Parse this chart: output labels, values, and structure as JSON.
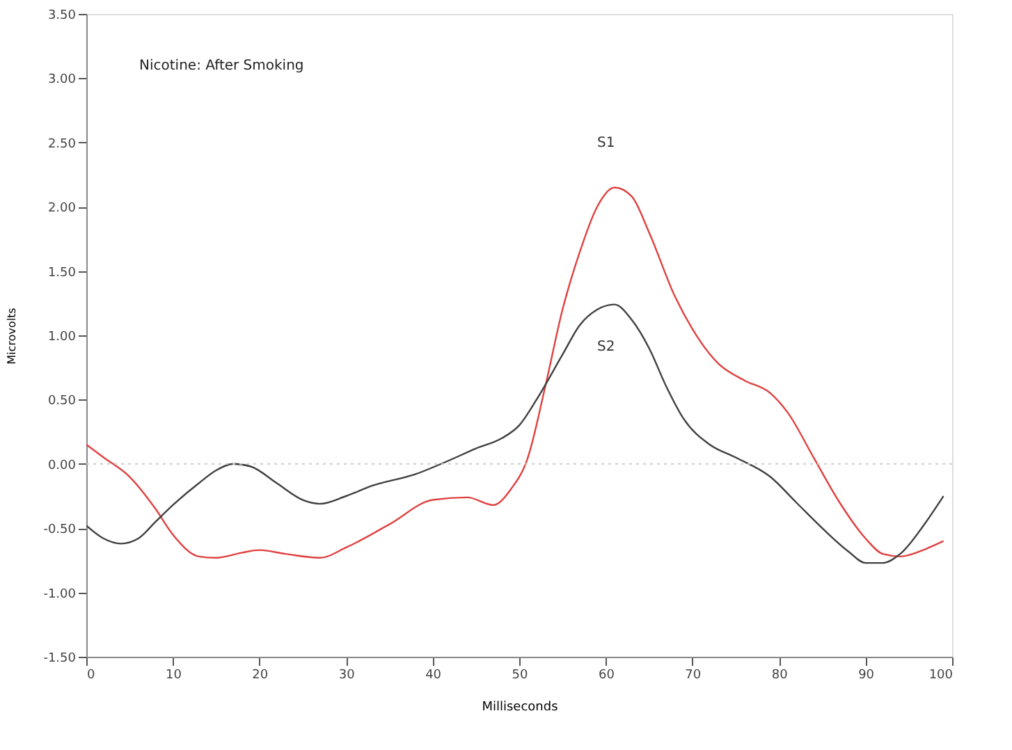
{
  "chart_data": {
    "type": "line",
    "title": "Nicotine: After Smoking",
    "xlabel": "Milliseconds",
    "ylabel": "Microvolts",
    "xlim": [
      0,
      100
    ],
    "xticks": [
      0,
      10,
      20,
      30,
      40,
      50,
      60,
      70,
      80,
      90,
      100
    ],
    "ylim": [
      -1.5,
      3.5
    ],
    "yticks": [
      {
        "value": -1.5,
        "label": "-1.50"
      },
      {
        "value": -1,
        "label": "-1.00"
      },
      {
        "value": -0.5,
        "label": "-0.50"
      },
      {
        "value": 0,
        "label": "0.00"
      },
      {
        "value": 0.5,
        "label": "0.50"
      },
      {
        "value": 1,
        "label": "1.00"
      },
      {
        "value": 1.5,
        "label": "1.50"
      },
      {
        "value": 2,
        "label": "2.00"
      },
      {
        "value": 2.5,
        "label": "2.50"
      },
      {
        "value": 3,
        "label": "3.00"
      },
      {
        "value": 3.5,
        "label": "3.50"
      }
    ],
    "line_style": "solid",
    "marker": "none",
    "ref_lines": [
      {
        "axis": "y",
        "value": 0,
        "color": "#cccccc",
        "line_style": "dotted"
      }
    ],
    "series": [
      {
        "name": "S1",
        "color": "#e04040",
        "x": [
          0,
          2,
          5,
          8,
          10,
          13,
          15,
          18,
          20,
          23,
          27,
          30,
          35,
          40,
          44,
          47,
          49,
          51,
          53,
          55,
          57,
          59,
          61,
          63,
          65,
          68,
          70,
          73,
          76,
          79,
          81,
          84,
          87,
          90,
          92,
          94,
          97,
          99
        ],
        "values": [
          0.15,
          0.05,
          -0.1,
          -0.35,
          -0.55,
          -0.72,
          -0.73,
          -0.69,
          -0.67,
          -0.7,
          -0.73,
          -0.65,
          -0.47,
          -0.28,
          -0.26,
          -0.32,
          -0.2,
          0.05,
          0.6,
          1.2,
          1.65,
          2.0,
          2.15,
          2.08,
          1.8,
          1.3,
          1.05,
          0.78,
          0.65,
          0.55,
          0.4,
          0.05,
          -0.3,
          -0.58,
          -0.7,
          -0.72,
          -0.66,
          -0.6
        ]
      },
      {
        "name": "S2",
        "color": "#404040",
        "x": [
          0,
          2,
          4,
          6,
          8,
          10,
          13,
          15,
          17,
          19,
          22,
          25,
          27,
          30,
          33,
          38,
          42,
          45,
          48,
          50,
          52,
          55,
          57,
          59,
          61,
          63,
          65,
          67,
          69,
          72,
          75,
          79,
          82,
          85,
          88,
          90,
          92,
          94,
          97,
          99
        ],
        "values": [
          -0.48,
          -0.58,
          -0.62,
          -0.58,
          -0.45,
          -0.32,
          -0.15,
          -0.05,
          0.0,
          -0.02,
          -0.15,
          -0.28,
          -0.31,
          -0.25,
          -0.17,
          -0.08,
          0.03,
          0.12,
          0.2,
          0.3,
          0.5,
          0.85,
          1.08,
          1.2,
          1.24,
          1.12,
          0.9,
          0.6,
          0.35,
          0.15,
          0.05,
          -0.1,
          -0.3,
          -0.5,
          -0.68,
          -0.77,
          -0.77,
          -0.7,
          -0.45,
          -0.25
        ]
      }
    ]
  }
}
